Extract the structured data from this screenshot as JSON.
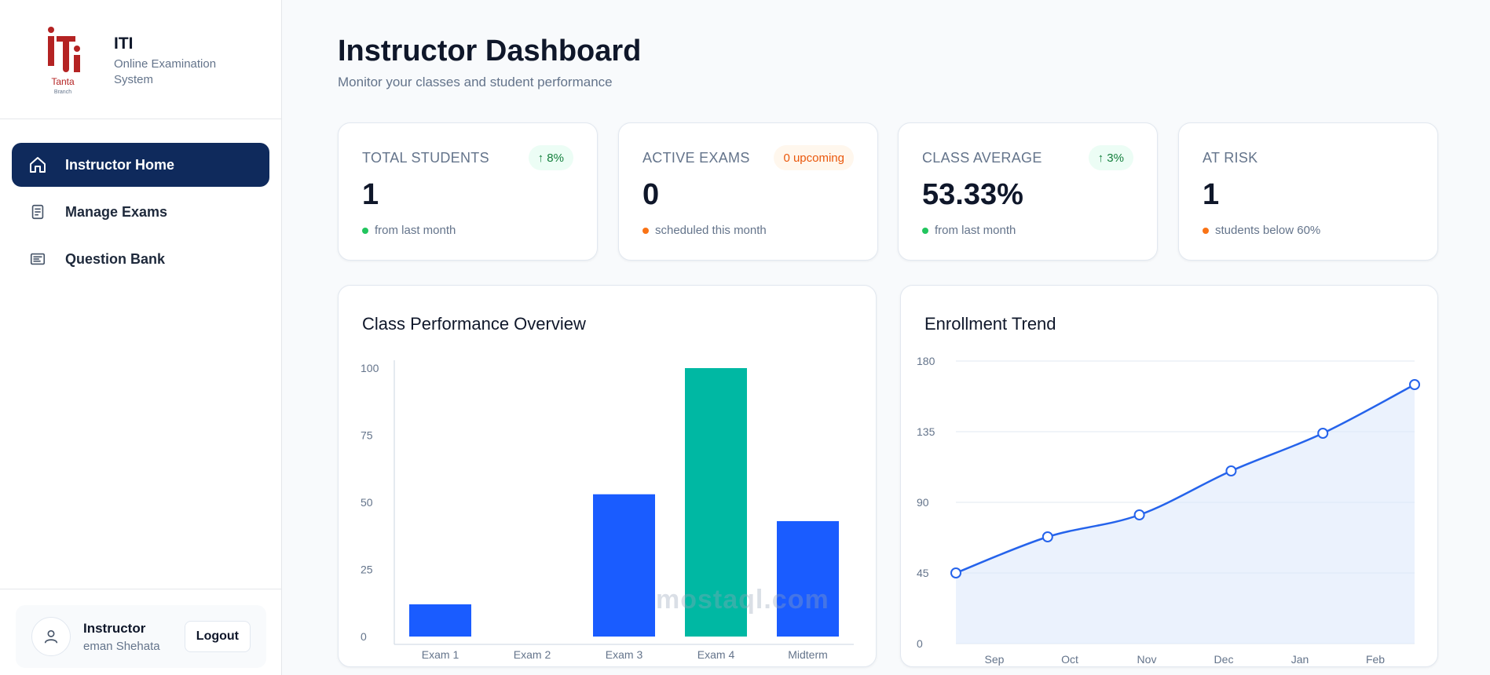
{
  "sidebar": {
    "logo": {
      "text": "Tanta",
      "sub": "Branch"
    },
    "brand_title": "ITI",
    "brand_subtitle": "Online Examination System",
    "nav": [
      {
        "label": "Instructor Home",
        "icon": "home-icon",
        "active": true
      },
      {
        "label": "Manage Exams",
        "icon": "document-icon",
        "active": false
      },
      {
        "label": "Question Bank",
        "icon": "list-icon",
        "active": false
      }
    ],
    "user": {
      "role": "Instructor",
      "name": "eman Shehata",
      "logout_label": "Logout"
    }
  },
  "header": {
    "title": "Instructor Dashboard",
    "subtitle": "Monitor your classes and student performance"
  },
  "stats": [
    {
      "label": "TOTAL STUDENTS",
      "value": "1",
      "badge": "↑ 8%",
      "badge_type": "green",
      "footer": "from last month",
      "dot_color": "#22c55e"
    },
    {
      "label": "ACTIVE EXAMS",
      "value": "0",
      "badge": "0 upcoming",
      "badge_type": "orange",
      "footer": "scheduled this month",
      "dot_color": "#f97316"
    },
    {
      "label": "CLASS AVERAGE",
      "value": "53.33%",
      "badge": "↑ 3%",
      "badge_type": "green",
      "footer": "from last month",
      "dot_color": "#22c55e"
    },
    {
      "label": "AT RISK",
      "value": "1",
      "badge": "",
      "badge_type": "none",
      "footer": "students below 60%",
      "dot_color": "#f97316"
    }
  ],
  "chart_data": [
    {
      "type": "bar",
      "title": "Class Performance Overview",
      "categories": [
        "Exam 1",
        "Exam 2",
        "Exam 3",
        "Exam 4",
        "Midterm"
      ],
      "values": [
        12,
        0,
        53,
        100,
        43
      ],
      "colors": [
        "#1a5cff",
        "#1a5cff",
        "#1a5cff",
        "#00b8a3",
        "#1a5cff"
      ],
      "ylim": [
        0,
        100
      ],
      "yticks": [
        0,
        25,
        50,
        75,
        100
      ]
    },
    {
      "type": "area",
      "title": "Enrollment Trend",
      "categories": [
        "Sep",
        "Oct",
        "Nov",
        "Dec",
        "Jan",
        "Feb"
      ],
      "values": [
        45,
        68,
        82,
        110,
        134,
        165
      ],
      "ylim": [
        0,
        180
      ],
      "yticks": [
        0,
        45,
        90,
        135,
        180
      ],
      "color": "#2563eb"
    }
  ],
  "watermark": "mostaql.com"
}
